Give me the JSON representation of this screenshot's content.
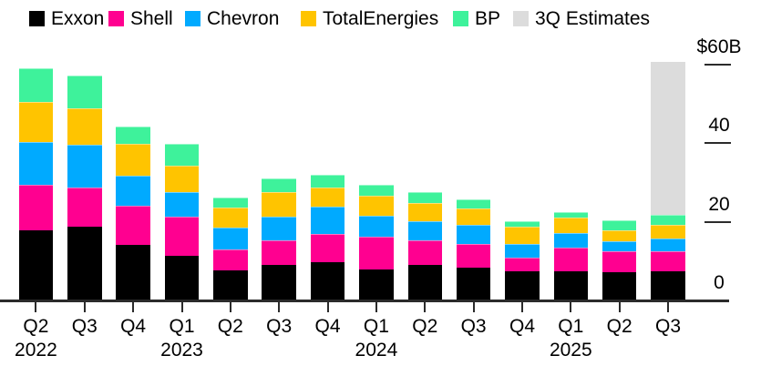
{
  "colors": {
    "background": "#FFFFFF",
    "axis_line": "#2B2B2B",
    "text": "#000000",
    "estimate_gray": "#DCDCDC"
  },
  "legend": {
    "items": [
      {
        "label": "Exxon",
        "color": "#000000",
        "x": 32
      },
      {
        "label": "Shell",
        "color": "#FF0090",
        "x": 119
      },
      {
        "label": "Chevron",
        "color": "#00AAFF",
        "x": 203
      },
      {
        "label": "TotalEnergies",
        "color": "#FFC400",
        "x": 330
      },
      {
        "label": "BP",
        "color": "#3EF29B",
        "x": 497
      },
      {
        "label": "3Q Estimates",
        "color": "#DCDCDC",
        "x": 563
      }
    ]
  },
  "chart_data": {
    "type": "bar",
    "stacked": true,
    "unit": "$B",
    "title": "",
    "xlabel": "",
    "ylabel": "",
    "ylim": [
      0,
      60
    ],
    "grid": false,
    "legend_position": "top",
    "y_axis": {
      "side": "right",
      "ticks": [
        {
          "label": "$60B",
          "value": 60
        },
        {
          "label": "40",
          "value": 40
        },
        {
          "label": "20",
          "value": 20
        },
        {
          "label": "0",
          "value": 0
        }
      ]
    },
    "categories": [
      "Q2 2022",
      "Q3 2022",
      "Q4 2022",
      "Q1 2023",
      "Q2 2023",
      "Q3 2023",
      "Q4 2023",
      "Q1 2024",
      "Q2 2024",
      "Q3 2024",
      "Q4 2024",
      "Q1 2025",
      "Q2 2025",
      "Q3 2025"
    ],
    "x_tick_labels": [
      "Q2",
      "Q3",
      "Q4",
      "Q1",
      "Q2",
      "Q3",
      "Q4",
      "Q1",
      "Q2",
      "Q3",
      "Q4",
      "Q1",
      "Q2",
      "Q3"
    ],
    "year_labels": [
      {
        "text": "2022",
        "bar_index": 0
      },
      {
        "text": "2023",
        "bar_index": 3
      },
      {
        "text": "2024",
        "bar_index": 7
      },
      {
        "text": "2025",
        "bar_index": 11
      }
    ],
    "series": [
      {
        "name": "Exxon",
        "color": "#000000",
        "values": [
          17.8,
          18.7,
          14.1,
          11.3,
          7.6,
          9.0,
          9.7,
          7.9,
          9.0,
          8.3,
          7.4,
          7.4,
          7.2,
          7.5
        ]
      },
      {
        "name": "Shell",
        "color": "#FF0090",
        "values": [
          11.6,
          10.0,
          10.0,
          10.0,
          5.3,
          6.3,
          7.2,
          8.3,
          6.3,
          6.0,
          3.5,
          6.0,
          5.3,
          5.1
        ]
      },
      {
        "name": "Chevron",
        "color": "#00AAFF",
        "values": [
          10.9,
          10.9,
          7.6,
          6.3,
          5.6,
          6.0,
          6.9,
          5.3,
          4.9,
          4.9,
          3.5,
          3.7,
          2.5,
          3.2
        ]
      },
      {
        "name": "TotalEnergies",
        "color": "#FFC400",
        "values": [
          10.2,
          9.3,
          8.1,
          6.7,
          5.1,
          6.3,
          4.9,
          5.1,
          4.6,
          4.2,
          4.4,
          3.9,
          2.8,
          3.5
        ]
      },
      {
        "name": "BP",
        "color": "#3EF29B",
        "values": [
          8.6,
          8.3,
          4.4,
          5.6,
          2.5,
          3.5,
          3.2,
          2.8,
          2.8,
          2.3,
          1.4,
          1.6,
          2.5,
          2.5
        ]
      }
    ],
    "estimates": {
      "label": "3Q Estimates",
      "color": "#DCDCDC",
      "bar_index": 13,
      "band_top_value": 60.7
    }
  }
}
